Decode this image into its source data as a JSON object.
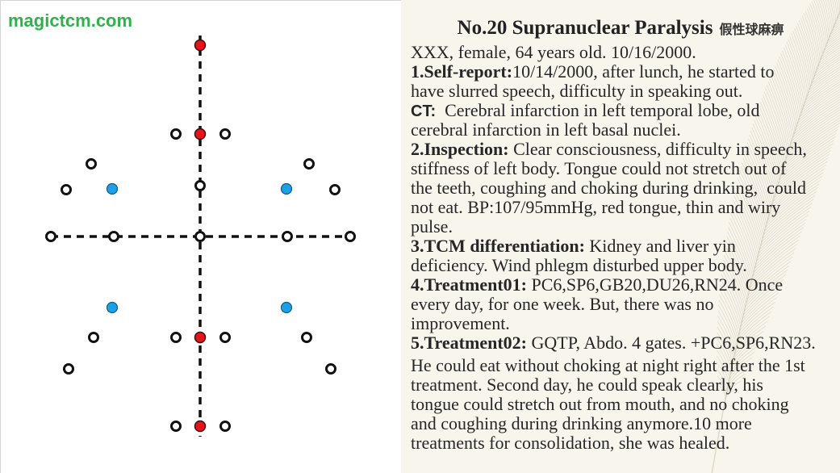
{
  "site": {
    "name": "magictcm.com"
  },
  "case": {
    "title": "No.20 Supranuclear Paralysis",
    "title_chinese": "假性球麻痹",
    "patient": "XXX, female, 64 years old. 10/16/2000.",
    "self_report": {
      "label": "1.Self-report:",
      "lines": [
        "10/14/2000, after lunch, he started to",
        "have slurred speech, difficulty in speaking out."
      ]
    },
    "ct": {
      "label": "CT:",
      "lines": [
        "  Cerebral infarction in left temporal lobe, old",
        "cerebral infarction in left basal nuclei."
      ]
    },
    "inspection": {
      "label": "2.Inspection:",
      "lines": [
        " Clear consciousness, difficulty in speech,",
        "stiffness of left body. Tongue could not stretch out of",
        "the teeth, coughing and choking during drinking,  could",
        "not eat. BP:107/95mmHg, red tongue, thin and wiry",
        "pulse."
      ]
    },
    "tcm_differentiation": {
      "label": "3.TCM differentiation:",
      "lines": [
        " Kidney and liver yin",
        "deficiency. Wind phlegm disturbed upper body."
      ]
    },
    "treatment01": {
      "label": "4.Treatment01:",
      "lines": [
        " PC6,SP6,GB20,DU26,RN24. Once",
        "every day, for one week. But, there was no",
        "improvement."
      ]
    },
    "treatment02": {
      "label": "5.Treatment02:",
      "lines": [
        " GQTP, Abdo. 4 gates. +PC6,SP6,RN23."
      ]
    },
    "outcome": {
      "lines": [
        "He could eat without choking at night right after the 1st",
        "treatment. Second day, he could speak clearly, his",
        "tongue could stretch out from mouth, and no choking",
        "and coughing during drinking anymore.10 more",
        "treatments for consolidation, she was healed."
      ]
    }
  },
  "colors": {
    "site_name": "#2fb24b",
    "red_point": "#e8141c",
    "blue_point": "#1ea0e6",
    "hollow_point": "#111111",
    "dashed_line": "#111111",
    "text_panel_background": "#f8f5ec",
    "body_text": "#262626"
  }
}
